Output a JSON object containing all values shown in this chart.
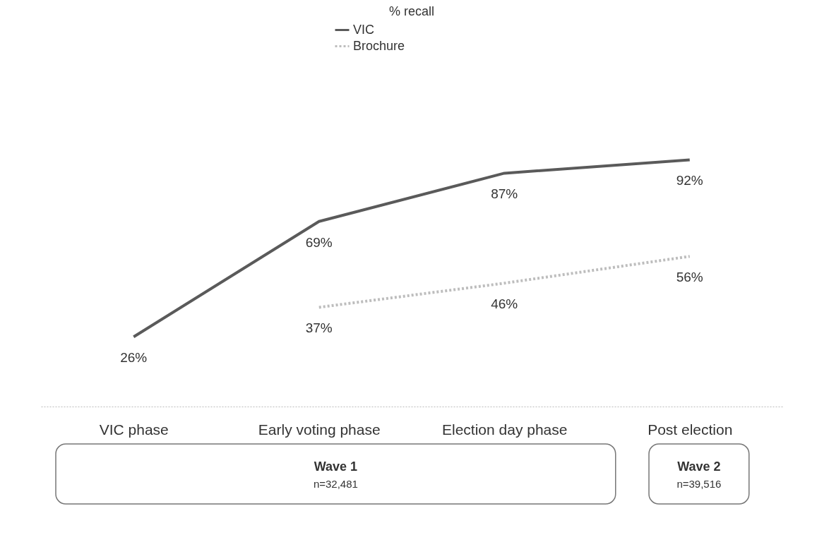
{
  "chart_data": {
    "type": "line",
    "title": "% recall",
    "categories": [
      "VIC phase",
      "Early voting phase",
      "Election day phase",
      "Post election"
    ],
    "series": [
      {
        "name": "VIC",
        "color": "#5a5a5a",
        "line_style": "solid",
        "values": [
          26,
          69,
          87,
          92
        ],
        "value_labels": [
          "26%",
          "69%",
          "87%",
          "92%"
        ]
      },
      {
        "name": "Brochure",
        "color": "#bdbdbd",
        "line_style": "dotted",
        "values": [
          null,
          37,
          46,
          56
        ],
        "value_labels": [
          null,
          "37%",
          "46%",
          "56%"
        ]
      }
    ],
    "legend": "top",
    "grid": false,
    "marker": "none",
    "tick_labels": "x",
    "annotations": [
      "Wave 1",
      "n=32,481",
      "Wave 2",
      "n=39,516"
    ]
  }
}
